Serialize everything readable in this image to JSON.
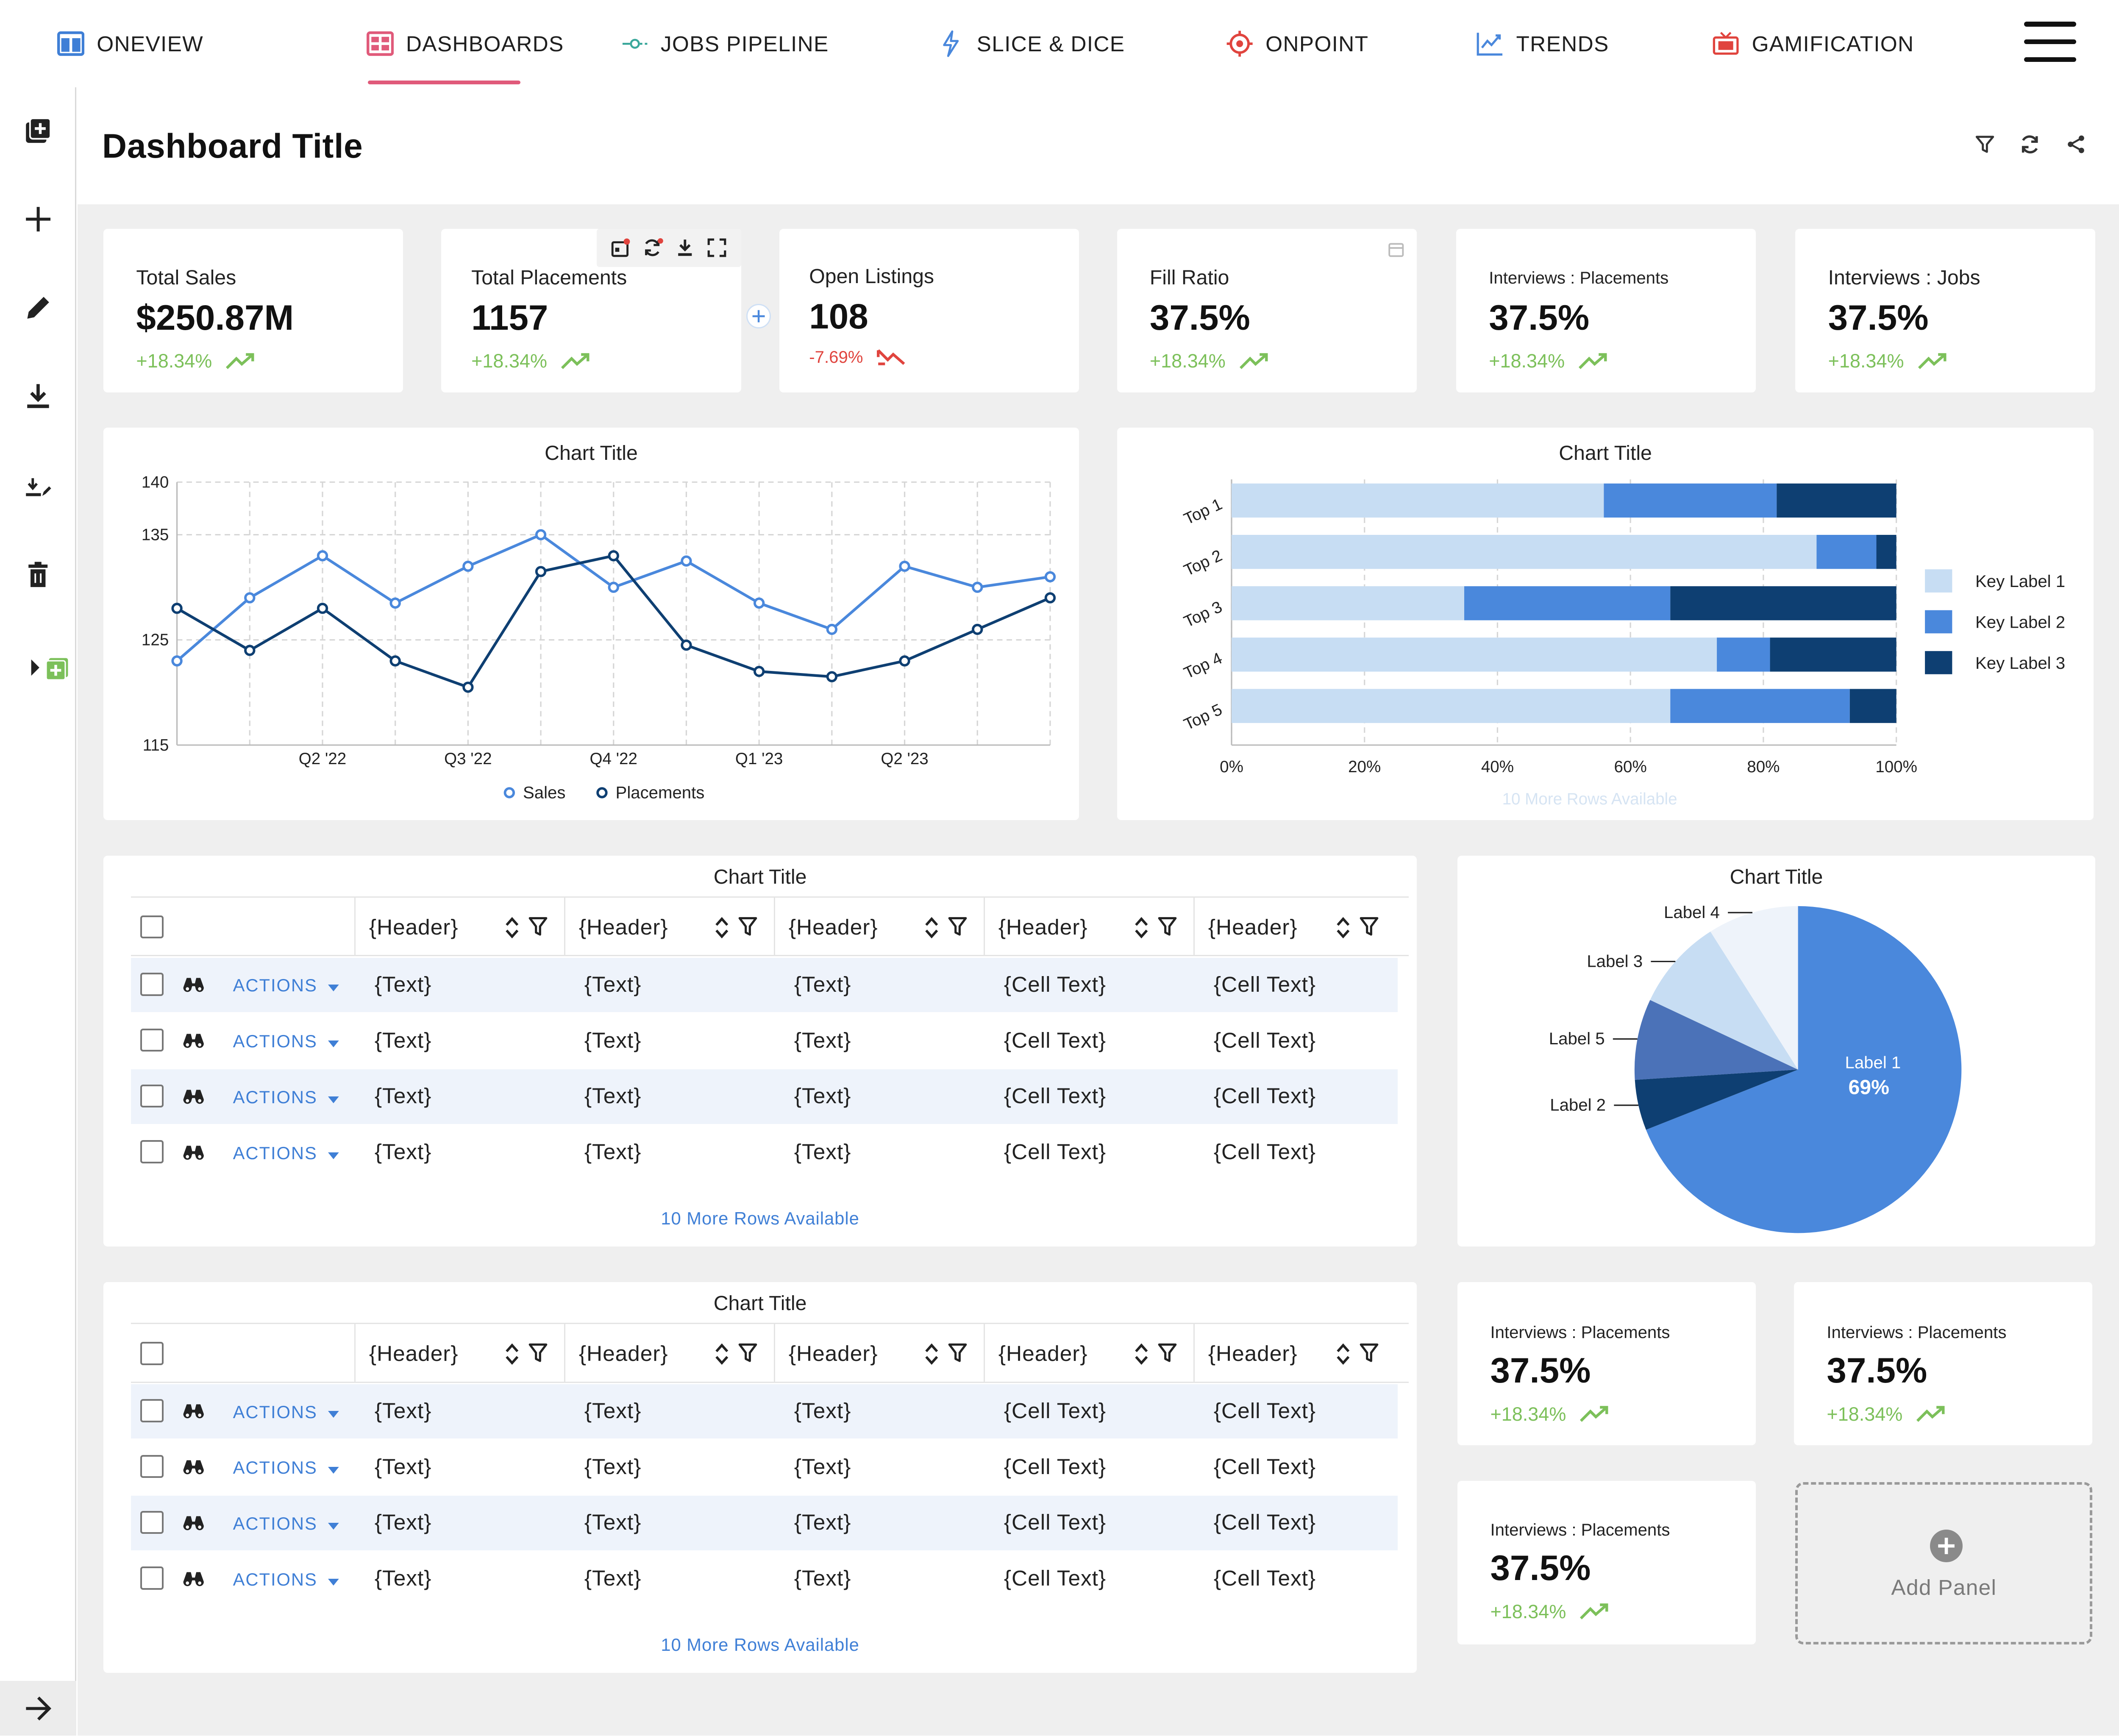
{
  "nav": {
    "items": [
      {
        "label": "ONEVIEW",
        "icon": "columns-icon"
      },
      {
        "label": "DASHBOARDS",
        "icon": "dashboard-grid-icon"
      },
      {
        "label": "JOBS PIPELINE",
        "icon": "pipeline-icon"
      },
      {
        "label": "SLICE & DICE",
        "icon": "lightning-icon"
      },
      {
        "label": "ONPOINT",
        "icon": "target-icon"
      },
      {
        "label": "TRENDS",
        "icon": "trend-chart-icon"
      },
      {
        "label": "GAMIFICATION",
        "icon": "tv-icon"
      }
    ],
    "active": "DASHBOARDS",
    "accent": "#e05a7a"
  },
  "rail": {
    "items": [
      "add-copy-icon",
      "plus-icon",
      "pencil-icon",
      "download-icon",
      "download-edit-icon",
      "trash-icon",
      "expand-add-icon"
    ],
    "bottom_icon": "arrow-right-icon"
  },
  "page": {
    "title": "Dashboard Title",
    "actions": [
      "filter-icon",
      "refresh-icon",
      "share-icon"
    ]
  },
  "kpis": [
    {
      "label": "Total Sales",
      "value": "$250.87M",
      "delta": "+18.34%",
      "trend": "up"
    },
    {
      "label": "Total Placements",
      "value": "1157",
      "delta": "+18.34%",
      "trend": "up"
    },
    {
      "label": "Open Listings",
      "value": "108",
      "delta": "-7.69%",
      "trend": "down"
    },
    {
      "label": "Fill Ratio",
      "value": "37.5%",
      "delta": "+18.34%",
      "trend": "up"
    },
    {
      "label": "Interviews : Placements",
      "value": "37.5%",
      "delta": "+18.34%",
      "trend": "up"
    },
    {
      "label": "Interviews : Jobs",
      "value": "37.5%",
      "delta": "+18.34%",
      "trend": "up"
    }
  ],
  "kpis_bottom": [
    {
      "label": "Interviews : Placements",
      "value": "37.5%",
      "delta": "+18.34%"
    },
    {
      "label": "Interviews : Placements",
      "value": "37.5%",
      "delta": "+18.34%"
    },
    {
      "label": "Interviews : Placements",
      "value": "37.5%",
      "delta": "+18.34%"
    }
  ],
  "colors": {
    "up": "#7cc05a",
    "down": "#e0443e",
    "link": "#3f7fd6",
    "light_blue": "#c7ddf3",
    "mid_blue": "#4a88dc",
    "dark_blue": "#0e3f72"
  },
  "line_chart": {
    "title": "Chart Title",
    "chart_data": {
      "type": "line",
      "x_tick_labels": [
        "Q2 '22",
        "Q3 '22",
        "Q4 '22",
        "Q1 '23",
        "Q2 '23"
      ],
      "y_ticks": [
        115,
        125,
        135,
        140
      ],
      "ylim": [
        115,
        140
      ],
      "series": [
        {
          "name": "Sales",
          "color": "#4a88dc",
          "values": [
            123,
            129,
            133,
            128.5,
            132,
            135,
            130,
            132.5,
            128.5,
            126,
            132,
            130,
            131
          ]
        },
        {
          "name": "Placements",
          "color": "#0e3f72",
          "values": [
            128,
            124,
            128,
            123,
            120.5,
            131.5,
            133,
            124.5,
            122,
            121.5,
            123,
            126,
            129
          ]
        }
      ],
      "grid": true,
      "legend": "bottom"
    }
  },
  "bar_chart": {
    "title": "Chart Title",
    "footer": "10 More Rows Available",
    "chart_data": {
      "type": "bar",
      "orientation": "horizontal",
      "stacked_percent": true,
      "categories": [
        "Top 1",
        "Top 2",
        "Top 3",
        "Top 4",
        "Top 5"
      ],
      "series": [
        {
          "name": "Key Label 1",
          "color": "#c7ddf3",
          "values": [
            56,
            88,
            35,
            73,
            66
          ]
        },
        {
          "name": "Key Label 2",
          "color": "#4a88dc",
          "values": [
            26,
            9,
            31,
            8,
            27
          ]
        },
        {
          "name": "Key Label 3",
          "color": "#0e3f72",
          "values": [
            18,
            3,
            34,
            19,
            7
          ]
        }
      ],
      "x_tick_labels": [
        "0%",
        "20%",
        "40%",
        "60%",
        "80%",
        "100%"
      ],
      "xlim": [
        0,
        100
      ],
      "legend": "right"
    }
  },
  "pie_chart": {
    "title": "Chart Title",
    "chart_data": {
      "type": "pie",
      "slices": [
        {
          "label": "Label 1",
          "value": 69,
          "color": "#4a88dc",
          "display": "69%"
        },
        {
          "label": "Label 2",
          "value": 5,
          "color": "#0e3f72"
        },
        {
          "label": "Label 5",
          "value": 8,
          "color": "#4b72b8"
        },
        {
          "label": "Label 3",
          "value": 9,
          "color": "#c7ddf3"
        },
        {
          "label": "Label 4",
          "value": 9,
          "color": "#eef3fa"
        }
      ]
    }
  },
  "tables": [
    {
      "title": "Chart Title",
      "headers": [
        "{Header}",
        "{Header}",
        "{Header}",
        "{Header}",
        "{Header}"
      ],
      "action_label": "ACTIONS",
      "rows": [
        [
          "{Text}",
          "{Text}",
          "{Text}",
          "{Cell Text}",
          "{Cell Text}"
        ],
        [
          "{Text}",
          "{Text}",
          "{Text}",
          "{Cell Text}",
          "{Cell Text}"
        ],
        [
          "{Text}",
          "{Text}",
          "{Text}",
          "{Cell Text}",
          "{Cell Text}"
        ],
        [
          "{Text}",
          "{Text}",
          "{Text}",
          "{Cell Text}",
          "{Cell Text}"
        ]
      ],
      "footer": "10 More Rows Available"
    },
    {
      "title": "Chart Title",
      "headers": [
        "{Header}",
        "{Header}",
        "{Header}",
        "{Header}",
        "{Header}"
      ],
      "action_label": "ACTIONS",
      "rows": [
        [
          "{Text}",
          "{Text}",
          "{Text}",
          "{Cell Text}",
          "{Cell Text}"
        ],
        [
          "{Text}",
          "{Text}",
          "{Text}",
          "{Cell Text}",
          "{Cell Text}"
        ],
        [
          "{Text}",
          "{Text}",
          "{Text}",
          "{Cell Text}",
          "{Cell Text}"
        ],
        [
          "{Text}",
          "{Text}",
          "{Text}",
          "{Cell Text}",
          "{Cell Text}"
        ]
      ],
      "footer": "10 More Rows Available"
    }
  ],
  "add_panel": {
    "label": "Add Panel"
  }
}
